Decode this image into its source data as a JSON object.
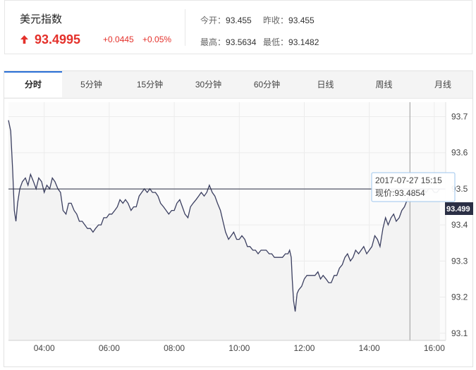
{
  "quote": {
    "name": "美元指数",
    "price": "93.4995",
    "change": "+0.0445",
    "change_pct": "+0.05%",
    "open_label": "今开：",
    "open_value": "93.455",
    "prev_close_label": "昨收：",
    "prev_close_value": "93.455",
    "high_label": "最高：",
    "high_value": "93.5634",
    "low_label": "最低：",
    "low_value": "93.1482",
    "up_color": "#e4312b"
  },
  "tabs": [
    {
      "label": "分时",
      "active": true
    },
    {
      "label": "5分钟",
      "active": false
    },
    {
      "label": "15分钟",
      "active": false
    },
    {
      "label": "30分钟",
      "active": false
    },
    {
      "label": "60分钟",
      "active": false
    },
    {
      "label": "日线",
      "active": false
    },
    {
      "label": "周线",
      "active": false
    },
    {
      "label": "月线",
      "active": false
    }
  ],
  "tooltip": {
    "date_time": "2017-07-27 15:15",
    "price_text": "现价:93.4854"
  },
  "current_price_tag": "93.499",
  "chart_data": {
    "type": "line",
    "title": "",
    "xlabel": "",
    "ylabel": "",
    "x_tick_labels": [
      "04:00",
      "06:00",
      "08:00",
      "10:00",
      "12:00",
      "14:00",
      "16:00"
    ],
    "x_tick_hours": [
      4,
      6,
      8,
      10,
      12,
      14,
      16
    ],
    "xlim_hours": [
      2.9,
      16.35
    ],
    "y_tick_labels": [
      "93.7",
      "93.6",
      "93.5",
      "93.4",
      "93.3",
      "93.2",
      "93.1"
    ],
    "y_ticks": [
      93.7,
      93.6,
      93.5,
      93.4,
      93.3,
      93.2,
      93.1
    ],
    "ylim": [
      93.08,
      93.74
    ],
    "reference_line": 93.4995,
    "crosshair_hour": 15.25,
    "crosshair_value": 93.4854,
    "grid": true,
    "line_color": "#3b3f60",
    "fill_color": "#f3f3f3",
    "series": [
      {
        "x": [
          2.9,
          2.97,
          3.03,
          3.08,
          3.13,
          3.18,
          3.25,
          3.33,
          3.42,
          3.5,
          3.58,
          3.67,
          3.75,
          3.83,
          3.92,
          4.0,
          4.08,
          4.17,
          4.25,
          4.33,
          4.42,
          4.5,
          4.58,
          4.67,
          4.75,
          4.83,
          4.92,
          5.0,
          5.08,
          5.17,
          5.25,
          5.33,
          5.42,
          5.5,
          5.58,
          5.67,
          5.75,
          5.83,
          5.92,
          6.0,
          6.08,
          6.17,
          6.25,
          6.33,
          6.42,
          6.5,
          6.58,
          6.67,
          6.75,
          6.83,
          6.92,
          7.0,
          7.08,
          7.17,
          7.25,
          7.33,
          7.42,
          7.5,
          7.58,
          7.67,
          7.75,
          7.83,
          7.92,
          8.0,
          8.08,
          8.17,
          8.25,
          8.33,
          8.42,
          8.5,
          8.58,
          8.67,
          8.75,
          8.83,
          8.92,
          9.0,
          9.08,
          9.17,
          9.25,
          9.33,
          9.42,
          9.5,
          9.58,
          9.67,
          9.75,
          9.83,
          9.92,
          10.0,
          10.08,
          10.17,
          10.25,
          10.33,
          10.42,
          10.5,
          10.58,
          10.67,
          10.75,
          10.83,
          10.92,
          11.0,
          11.08,
          11.17,
          11.25,
          11.33,
          11.42,
          11.5,
          11.55,
          11.6,
          11.63,
          11.67,
          11.72,
          11.78,
          11.83,
          11.92,
          12.0,
          12.08,
          12.17,
          12.25,
          12.33,
          12.42,
          12.5,
          12.58,
          12.67,
          12.75,
          12.83,
          12.92,
          13.0,
          13.08,
          13.17,
          13.25,
          13.33,
          13.42,
          13.5,
          13.58,
          13.67,
          13.75,
          13.83,
          13.92,
          14.0,
          14.08,
          14.17,
          14.25,
          14.33,
          14.42,
          14.5,
          14.58,
          14.67,
          14.75,
          14.83,
          14.92,
          15.0,
          15.08,
          15.17,
          15.25,
          15.33,
          15.42,
          15.5,
          15.58,
          15.67,
          15.75,
          15.83,
          15.92,
          16.0,
          16.08,
          16.17
        ],
        "y": [
          93.69,
          93.66,
          93.55,
          93.44,
          93.41,
          93.46,
          93.5,
          93.52,
          93.53,
          93.51,
          93.54,
          93.52,
          93.5,
          93.53,
          93.52,
          93.49,
          93.51,
          93.5,
          93.53,
          93.52,
          93.5,
          93.49,
          93.44,
          93.43,
          93.46,
          93.46,
          93.44,
          93.43,
          93.41,
          93.41,
          93.4,
          93.39,
          93.39,
          93.38,
          93.39,
          93.4,
          93.4,
          93.42,
          93.42,
          93.43,
          93.43,
          93.44,
          93.45,
          93.47,
          93.46,
          93.47,
          93.46,
          93.44,
          93.45,
          93.45,
          93.48,
          93.49,
          93.5,
          93.49,
          93.5,
          93.49,
          93.49,
          93.48,
          93.46,
          93.45,
          93.44,
          93.43,
          93.44,
          93.44,
          93.46,
          93.47,
          93.45,
          93.43,
          93.42,
          93.45,
          93.46,
          93.47,
          93.48,
          93.49,
          93.48,
          93.49,
          93.51,
          93.49,
          93.48,
          93.46,
          93.44,
          93.41,
          93.38,
          93.36,
          93.37,
          93.38,
          93.36,
          93.36,
          93.37,
          93.36,
          93.34,
          93.34,
          93.33,
          93.33,
          93.32,
          93.33,
          93.33,
          93.33,
          93.32,
          93.32,
          93.31,
          93.31,
          93.31,
          93.31,
          93.32,
          93.32,
          93.33,
          93.31,
          93.25,
          93.19,
          93.16,
          93.21,
          93.22,
          93.23,
          93.25,
          93.26,
          93.26,
          93.26,
          93.26,
          93.27,
          93.25,
          93.26,
          93.25,
          93.24,
          93.24,
          93.26,
          93.26,
          93.28,
          93.29,
          93.31,
          93.32,
          93.3,
          93.31,
          93.33,
          93.32,
          93.33,
          93.34,
          93.32,
          93.33,
          93.34,
          93.37,
          93.36,
          93.34,
          93.39,
          93.42,
          93.4,
          93.42,
          93.43,
          93.41,
          93.42,
          93.44,
          93.45,
          93.47,
          93.49,
          93.48,
          93.49,
          93.49,
          93.5,
          93.5,
          93.49,
          93.5,
          93.5,
          93.49,
          93.49,
          93.5
        ]
      }
    ]
  }
}
